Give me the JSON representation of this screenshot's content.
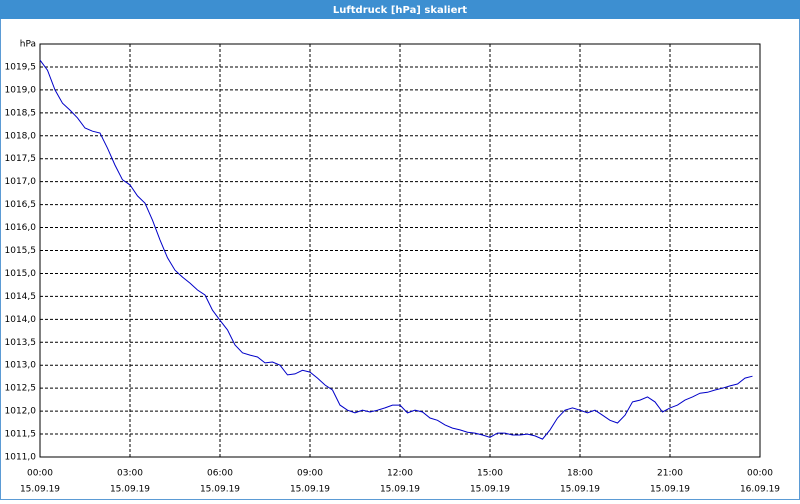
{
  "chart_data": {
    "type": "line",
    "title": "Luftdruck [hPa] skaliert",
    "y_label": "hPa",
    "color": "#0000c8",
    "grid": true,
    "xlim": [
      0,
      24
    ],
    "ylim": [
      1011.0,
      1020.0
    ],
    "xticks": [
      {
        "value": 0,
        "label": "00:00"
      },
      {
        "value": 3,
        "label": "03:00"
      },
      {
        "value": 6,
        "label": "06:00"
      },
      {
        "value": 9,
        "label": "09:00"
      },
      {
        "value": 12,
        "label": "12:00"
      },
      {
        "value": 15,
        "label": "15:00"
      },
      {
        "value": 18,
        "label": "18:00"
      },
      {
        "value": 21,
        "label": "21:00"
      },
      {
        "value": 24,
        "label": "00:00"
      }
    ],
    "xtick_dates": [
      "15.09.19",
      "15.09.19",
      "15.09.19",
      "15.09.19",
      "15.09.19",
      "15.09.19",
      "15.09.19",
      "15.09.19",
      "16.09.19"
    ],
    "yticks": [
      {
        "value": 1011.0,
        "label": "1011,0"
      },
      {
        "value": 1011.5,
        "label": "1011,5"
      },
      {
        "value": 1012.0,
        "label": "1012,0"
      },
      {
        "value": 1012.5,
        "label": "1012,5"
      },
      {
        "value": 1013.0,
        "label": "1013,0"
      },
      {
        "value": 1013.5,
        "label": "1013,5"
      },
      {
        "value": 1014.0,
        "label": "1014,0"
      },
      {
        "value": 1014.5,
        "label": "1014,5"
      },
      {
        "value": 1015.0,
        "label": "1015,0"
      },
      {
        "value": 1015.5,
        "label": "1015,5"
      },
      {
        "value": 1016.0,
        "label": "1016,0"
      },
      {
        "value": 1016.5,
        "label": "1016,5"
      },
      {
        "value": 1017.0,
        "label": "1017,0"
      },
      {
        "value": 1017.5,
        "label": "1017,5"
      },
      {
        "value": 1018.0,
        "label": "1018,0"
      },
      {
        "value": 1018.5,
        "label": "1018,5"
      },
      {
        "value": 1019.0,
        "label": "1019,0"
      },
      {
        "value": 1019.5,
        "label": "1019,5"
      }
    ],
    "x": [
      0,
      0.25,
      0.5,
      0.75,
      1,
      1.25,
      1.5,
      1.75,
      2,
      2.25,
      2.5,
      2.75,
      3,
      3.25,
      3.5,
      3.75,
      4,
      4.25,
      4.5,
      4.75,
      5,
      5.25,
      5.5,
      5.75,
      6,
      6.25,
      6.5,
      6.75,
      7,
      7.25,
      7.5,
      7.75,
      8,
      8.25,
      8.5,
      8.75,
      9,
      9.25,
      9.5,
      9.75,
      10,
      10.25,
      10.5,
      10.75,
      11,
      11.25,
      11.5,
      11.75,
      12,
      12.25,
      12.5,
      12.75,
      13,
      13.25,
      13.5,
      13.75,
      14,
      14.25,
      14.5,
      14.75,
      15,
      15.25,
      15.5,
      15.75,
      16,
      16.25,
      16.5,
      16.75,
      17,
      17.25,
      17.5,
      17.75,
      18,
      18.25,
      18.5,
      18.75,
      19,
      19.25,
      19.5,
      19.75,
      20,
      20.25,
      20.5,
      20.75,
      21,
      21.25,
      21.5,
      21.75,
      22,
      22.25,
      22.5,
      22.75,
      23,
      23.25,
      23.5,
      23.75
    ],
    "values": [
      1019.65,
      1019.43,
      1019.0,
      1018.71,
      1018.56,
      1018.39,
      1018.17,
      1018.1,
      1018.06,
      1017.73,
      1017.36,
      1017.04,
      1016.93,
      1016.69,
      1016.53,
      1016.16,
      1015.73,
      1015.34,
      1015.07,
      1014.92,
      1014.79,
      1014.64,
      1014.53,
      1014.2,
      1013.98,
      1013.77,
      1013.44,
      1013.27,
      1013.22,
      1013.18,
      1013.05,
      1013.07,
      1013.0,
      1012.79,
      1012.81,
      1012.89,
      1012.85,
      1012.72,
      1012.57,
      1012.46,
      1012.13,
      1012.02,
      1011.96,
      1012.02,
      1011.98,
      1012.02,
      1012.07,
      1012.13,
      1012.13,
      1011.96,
      1012.02,
      1011.98,
      1011.85,
      1011.8,
      1011.7,
      1011.63,
      1011.59,
      1011.54,
      1011.52,
      1011.48,
      1011.43,
      1011.52,
      1011.52,
      1011.48,
      1011.48,
      1011.5,
      1011.46,
      1011.39,
      1011.59,
      1011.85,
      1012.02,
      1012.07,
      1012.02,
      1011.96,
      1012.02,
      1011.91,
      1011.8,
      1011.74,
      1011.91,
      1012.2,
      1012.24,
      1012.31,
      1012.2,
      1011.98,
      1012.07,
      1012.13,
      1012.24,
      1012.31,
      1012.39,
      1012.41,
      1012.46,
      1012.5,
      1012.55,
      1012.59,
      1012.72,
      1012.76
    ]
  }
}
